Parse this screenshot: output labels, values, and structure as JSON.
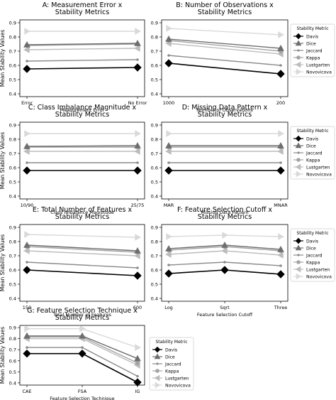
{
  "figure": {
    "ylabel": "Mean Stability Values",
    "legend_title": "Stability Metric"
  },
  "styles": {
    "Davis": {
      "color": "#000000",
      "marker": "diamond"
    },
    "Dice": {
      "color": "#6e6e6e",
      "marker": "triangle"
    },
    "Jaccard": {
      "color": "#8c8c8c",
      "marker": "smallcircle"
    },
    "Kappa": {
      "color": "#a3a3a3",
      "marker": "circle"
    },
    "Lustgarten": {
      "color": "#bcbcbc",
      "marker": "triangle-left"
    },
    "Novovicova": {
      "color": "#d9d9d9",
      "marker": "triangle-right"
    }
  },
  "chart_data": [
    {
      "type": "line",
      "title": "A: Measurement Error x\nStability Metrics",
      "xlabel": "Measurement Error",
      "ylabel": "Mean Stability Values",
      "categories": [
        "Error",
        "No Error"
      ],
      "ylim": [
        0.38,
        0.92
      ],
      "yticks": [
        0.4,
        0.5,
        0.6,
        0.7,
        0.8,
        0.9
      ],
      "legend": false,
      "series": [
        {
          "name": "Davis",
          "values": [
            0.575,
            0.585
          ]
        },
        {
          "name": "Dice",
          "values": [
            0.745,
            0.755
          ]
        },
        {
          "name": "Jaccard",
          "values": [
            0.63,
            0.64
          ]
        },
        {
          "name": "Kappa",
          "values": [
            0.74,
            0.75
          ]
        },
        {
          "name": "Lustgarten",
          "values": [
            0.71,
            0.72
          ]
        },
        {
          "name": "Novovicova",
          "values": [
            0.84,
            0.84
          ]
        }
      ]
    },
    {
      "type": "line",
      "title": "B: Number of Observations x\nStability Metrics",
      "xlabel": "Number of Observations",
      "ylabel": "",
      "categories": [
        "1000",
        "200"
      ],
      "ylim": [
        0.38,
        0.92
      ],
      "yticks": [
        0.4,
        0.5,
        0.6,
        0.7,
        0.8,
        0.9
      ],
      "legend": true,
      "series": [
        {
          "name": "Davis",
          "values": [
            0.615,
            0.54
          ]
        },
        {
          "name": "Dice",
          "values": [
            0.785,
            0.72
          ]
        },
        {
          "name": "Jaccard",
          "values": [
            0.67,
            0.6
          ]
        },
        {
          "name": "Kappa",
          "values": [
            0.775,
            0.7
          ]
        },
        {
          "name": "Lustgarten",
          "values": [
            0.755,
            0.68
          ]
        },
        {
          "name": "Novovicova",
          "values": [
            0.86,
            0.815
          ]
        }
      ]
    },
    {
      "type": "line",
      "title": "C: Class Imbalance Magnitude x\nStability Metrics",
      "xlabel": "Class Imbalance Magnitude",
      "ylabel": "Mean Stability Values",
      "categories": [
        "10/90",
        "25/75"
      ],
      "ylim": [
        0.38,
        0.92
      ],
      "yticks": [
        0.4,
        0.5,
        0.6,
        0.7,
        0.8,
        0.9
      ],
      "legend": false,
      "series": [
        {
          "name": "Davis",
          "values": [
            0.58,
            0.58
          ]
        },
        {
          "name": "Dice",
          "values": [
            0.75,
            0.755
          ]
        },
        {
          "name": "Jaccard",
          "values": [
            0.635,
            0.635
          ]
        },
        {
          "name": "Kappa",
          "values": [
            0.745,
            0.745
          ]
        },
        {
          "name": "Lustgarten",
          "values": [
            0.715,
            0.715
          ]
        },
        {
          "name": "Novovicova",
          "values": [
            0.84,
            0.84
          ]
        }
      ]
    },
    {
      "type": "line",
      "title": "D: Missing Data Pattern x\nStability Metrics",
      "xlabel": "Missing Data Pattern",
      "ylabel": "",
      "categories": [
        "MAR",
        "MNAR"
      ],
      "ylim": [
        0.38,
        0.92
      ],
      "yticks": [
        0.4,
        0.5,
        0.6,
        0.7,
        0.8,
        0.9
      ],
      "legend": true,
      "series": [
        {
          "name": "Davis",
          "values": [
            0.58,
            0.58
          ]
        },
        {
          "name": "Dice",
          "values": [
            0.755,
            0.755
          ]
        },
        {
          "name": "Jaccard",
          "values": [
            0.635,
            0.635
          ]
        },
        {
          "name": "Kappa",
          "values": [
            0.745,
            0.745
          ]
        },
        {
          "name": "Lustgarten",
          "values": [
            0.715,
            0.715
          ]
        },
        {
          "name": "Novovicova",
          "values": [
            0.84,
            0.84
          ]
        }
      ]
    },
    {
      "type": "line",
      "title": "E: Total Number of Features x\nStability Metrics",
      "xlabel": "Total Number of Features",
      "ylabel": "Mean Stability Values",
      "categories": [
        "150",
        "600"
      ],
      "ylim": [
        0.38,
        0.92
      ],
      "yticks": [
        0.4,
        0.5,
        0.6,
        0.7,
        0.8,
        0.9
      ],
      "legend": false,
      "series": [
        {
          "name": "Davis",
          "values": [
            0.6,
            0.56
          ]
        },
        {
          "name": "Dice",
          "values": [
            0.775,
            0.735
          ]
        },
        {
          "name": "Jaccard",
          "values": [
            0.655,
            0.615
          ]
        },
        {
          "name": "Kappa",
          "values": [
            0.765,
            0.725
          ]
        },
        {
          "name": "Lustgarten",
          "values": [
            0.735,
            0.7
          ]
        },
        {
          "name": "Novovicova",
          "values": [
            0.85,
            0.83
          ]
        }
      ]
    },
    {
      "type": "line",
      "title": "F: Feature Selection Cutoff x\nStability Metrics",
      "xlabel": "Feature Selection Cutoff",
      "ylabel": "",
      "categories": [
        "Log",
        "Sqrt",
        "Three"
      ],
      "ylim": [
        0.38,
        0.92
      ],
      "yticks": [
        0.4,
        0.5,
        0.6,
        0.7,
        0.8,
        0.9
      ],
      "legend": true,
      "series": [
        {
          "name": "Davis",
          "values": [
            0.575,
            0.6,
            0.57
          ]
        },
        {
          "name": "Dice",
          "values": [
            0.75,
            0.775,
            0.745
          ]
        },
        {
          "name": "Jaccard",
          "values": [
            0.635,
            0.655,
            0.63
          ]
        },
        {
          "name": "Kappa",
          "values": [
            0.74,
            0.765,
            0.735
          ]
        },
        {
          "name": "Lustgarten",
          "values": [
            0.71,
            0.735,
            0.705
          ]
        },
        {
          "name": "Novovicova",
          "values": [
            0.835,
            0.845,
            0.835
          ]
        }
      ]
    },
    {
      "type": "line",
      "title": "G: Feature Selection Technique x\nStability Metrics",
      "xlabel": "Feature Selection Technique",
      "ylabel": "Mean Stability Values",
      "categories": [
        "CAE",
        "FSA",
        "IG"
      ],
      "ylim": [
        0.38,
        0.92
      ],
      "yticks": [
        0.4,
        0.5,
        0.6,
        0.7,
        0.8,
        0.9
      ],
      "legend": true,
      "series": [
        {
          "name": "Davis",
          "values": [
            0.665,
            0.665,
            0.405
          ]
        },
        {
          "name": "Dice",
          "values": [
            0.825,
            0.825,
            0.62
          ]
        },
        {
          "name": "Jaccard",
          "values": [
            0.72,
            0.72,
            0.46
          ]
        },
        {
          "name": "Kappa",
          "values": [
            0.815,
            0.815,
            0.58
          ]
        },
        {
          "name": "Lustgarten",
          "values": [
            0.8,
            0.8,
            0.56
          ]
        },
        {
          "name": "Novovicova",
          "values": [
            0.89,
            0.89,
            0.72
          ]
        }
      ]
    }
  ]
}
